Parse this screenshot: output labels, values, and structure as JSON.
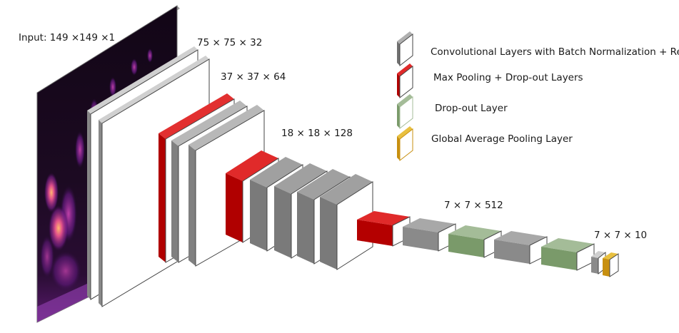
{
  "diagram": {
    "input_label": "Input: 149 ×149 ×1",
    "dimension_labels": {
      "conv1": "75 × 75 × 32",
      "conv2": "37 × 37 × 64",
      "conv3": "18 × 18 × 128",
      "conv4": "7 × 7 × 512",
      "output": "7 × 7 × 10"
    }
  },
  "legend": [
    {
      "label": "Convolutional Layers with Batch Normalization + ReLu",
      "color": "#8a8a8a",
      "icon": "conv-layer-icon"
    },
    {
      "label": "Max Pooling + Drop-out Layers",
      "color": "#cc0000",
      "icon": "maxpool-layer-icon"
    },
    {
      "label": "Drop-out Layer",
      "color": "#7a9a6a",
      "icon": "dropout-layer-icon"
    },
    {
      "label": "Global Average Pooling Layer",
      "color": "#d4a017",
      "icon": "gap-layer-icon"
    }
  ],
  "colors": {
    "conv": "#8a8a8a",
    "maxpool": "#cc0000",
    "dropout": "#7a9a6a",
    "gap": "#d4a017",
    "spectrogram": "#1a0a1e"
  }
}
